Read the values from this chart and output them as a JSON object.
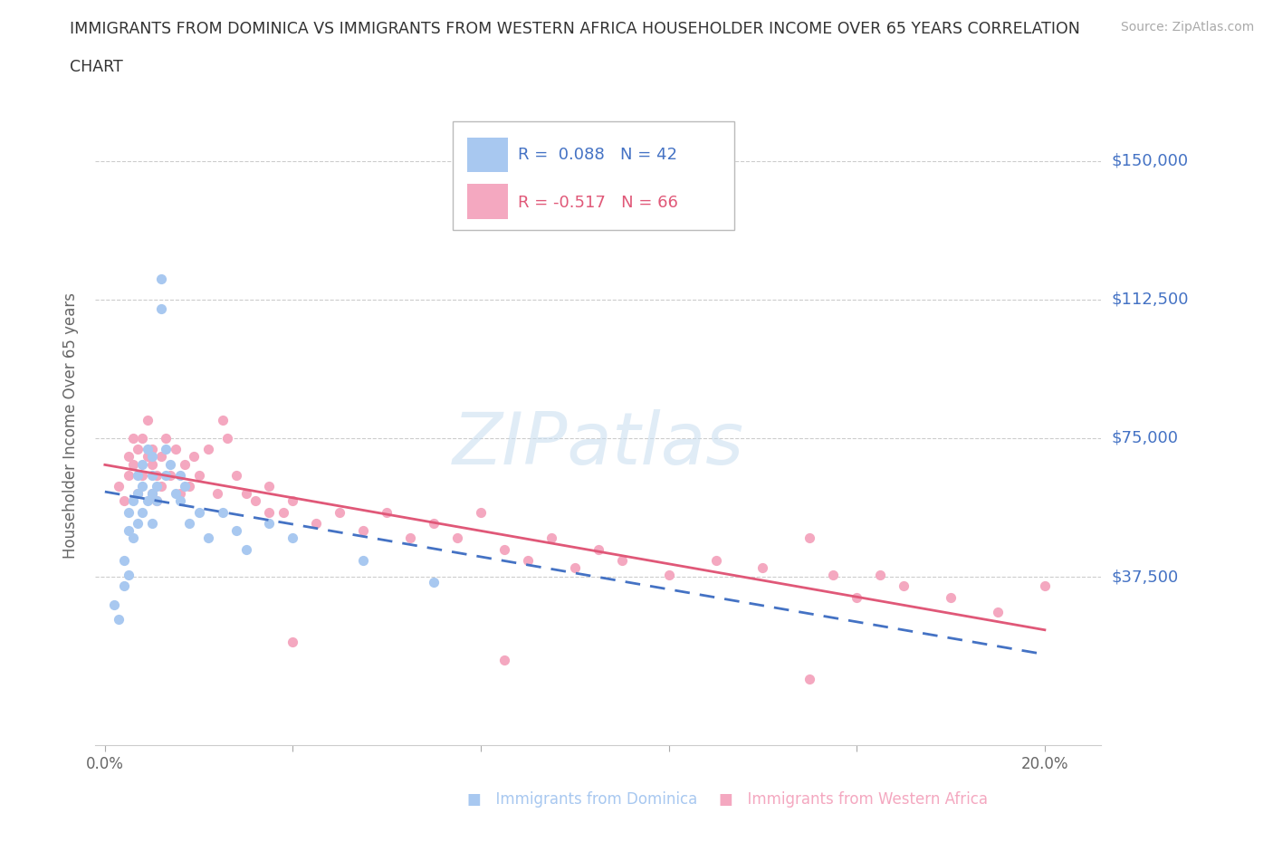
{
  "title_line1": "IMMIGRANTS FROM DOMINICA VS IMMIGRANTS FROM WESTERN AFRICA HOUSEHOLDER INCOME OVER 65 YEARS CORRELATION",
  "title_line2": "CHART",
  "source": "Source: ZipAtlas.com",
  "ylabel": "Householder Income Over 65 years",
  "xlim": [
    -0.002,
    0.212
  ],
  "ylim": [
    -8000,
    165000
  ],
  "yticks": [
    0,
    37500,
    75000,
    112500,
    150000
  ],
  "ytick_labels": [
    "",
    "$37,500",
    "$75,000",
    "$112,500",
    "$150,000"
  ],
  "xticks": [
    0.0,
    0.04,
    0.08,
    0.12,
    0.16,
    0.2
  ],
  "xtick_labels": [
    "0.0%",
    "",
    "",
    "",
    "",
    "20.0%"
  ],
  "r_dominica": 0.088,
  "n_dominica": 42,
  "r_western_africa": -0.517,
  "n_western_africa": 66,
  "color_dominica": "#a8c8f0",
  "color_western_africa": "#f4a8c0",
  "line_color_dominica": "#4472c4",
  "line_color_western_africa": "#e05878",
  "dominica_x": [
    0.002,
    0.003,
    0.004,
    0.004,
    0.005,
    0.005,
    0.005,
    0.006,
    0.006,
    0.007,
    0.007,
    0.007,
    0.008,
    0.008,
    0.008,
    0.009,
    0.009,
    0.01,
    0.01,
    0.01,
    0.01,
    0.011,
    0.011,
    0.012,
    0.012,
    0.013,
    0.013,
    0.014,
    0.015,
    0.016,
    0.016,
    0.017,
    0.018,
    0.02,
    0.022,
    0.025,
    0.028,
    0.03,
    0.035,
    0.04,
    0.055,
    0.07
  ],
  "dominica_y": [
    30000,
    26000,
    35000,
    42000,
    38000,
    50000,
    55000,
    48000,
    58000,
    52000,
    60000,
    65000,
    55000,
    62000,
    68000,
    58000,
    72000,
    52000,
    60000,
    65000,
    70000,
    58000,
    62000,
    110000,
    118000,
    65000,
    72000,
    68000,
    60000,
    58000,
    65000,
    62000,
    52000,
    55000,
    48000,
    55000,
    50000,
    45000,
    52000,
    48000,
    42000,
    36000
  ],
  "western_africa_x": [
    0.003,
    0.004,
    0.005,
    0.005,
    0.006,
    0.006,
    0.007,
    0.007,
    0.008,
    0.008,
    0.009,
    0.009,
    0.01,
    0.01,
    0.01,
    0.011,
    0.011,
    0.012,
    0.012,
    0.013,
    0.014,
    0.015,
    0.016,
    0.017,
    0.018,
    0.019,
    0.02,
    0.022,
    0.024,
    0.026,
    0.028,
    0.03,
    0.032,
    0.035,
    0.038,
    0.04,
    0.045,
    0.05,
    0.055,
    0.06,
    0.065,
    0.07,
    0.075,
    0.08,
    0.085,
    0.09,
    0.095,
    0.1,
    0.105,
    0.11,
    0.12,
    0.13,
    0.14,
    0.15,
    0.155,
    0.16,
    0.165,
    0.17,
    0.18,
    0.19,
    0.2,
    0.025,
    0.035,
    0.04,
    0.085,
    0.15
  ],
  "western_africa_y": [
    62000,
    58000,
    70000,
    65000,
    68000,
    75000,
    60000,
    72000,
    65000,
    75000,
    70000,
    80000,
    60000,
    68000,
    72000,
    58000,
    65000,
    62000,
    70000,
    75000,
    65000,
    72000,
    60000,
    68000,
    62000,
    70000,
    65000,
    72000,
    60000,
    75000,
    65000,
    60000,
    58000,
    62000,
    55000,
    58000,
    52000,
    55000,
    50000,
    55000,
    48000,
    52000,
    48000,
    55000,
    45000,
    42000,
    48000,
    40000,
    45000,
    42000,
    38000,
    42000,
    40000,
    48000,
    38000,
    32000,
    38000,
    35000,
    32000,
    28000,
    35000,
    80000,
    55000,
    20000,
    15000,
    10000
  ]
}
